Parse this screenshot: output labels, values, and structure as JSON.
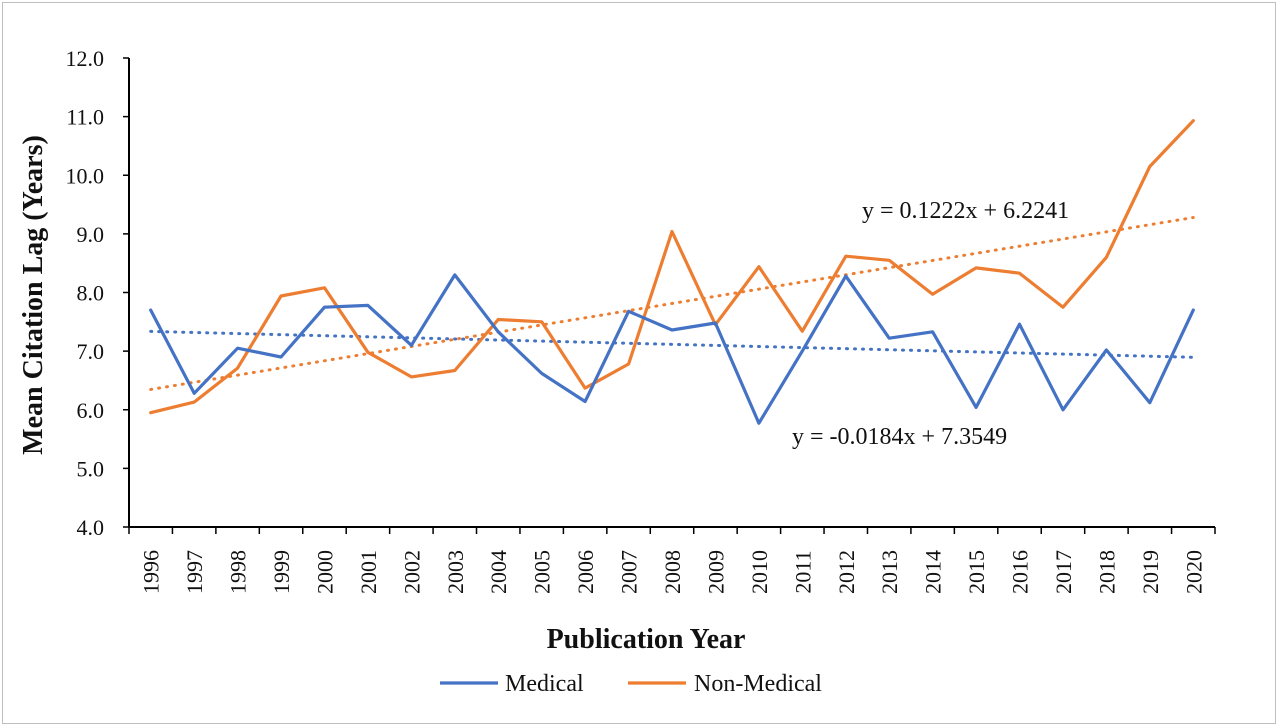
{
  "chart_data": {
    "type": "line",
    "title": "",
    "xlabel": "Publication Year",
    "ylabel": "Mean Citation Lag (Years)",
    "ylim": [
      4.0,
      12.0
    ],
    "ytick_step": 1.0,
    "categories": [
      "1996",
      "1997",
      "1998",
      "1999",
      "2000",
      "2001",
      "2002",
      "2003",
      "2004",
      "2005",
      "2006",
      "2007",
      "2008",
      "2009",
      "2010",
      "2011",
      "2012",
      "2013",
      "2014",
      "2015",
      "2016",
      "2017",
      "2018",
      "2019",
      "2020"
    ],
    "series": [
      {
        "name": "Medical",
        "color": "#4472C4",
        "values": [
          7.7,
          6.28,
          7.05,
          6.9,
          7.75,
          7.78,
          7.1,
          8.3,
          7.33,
          6.62,
          6.14,
          7.68,
          7.36,
          7.48,
          5.77,
          7.0,
          8.28,
          7.22,
          7.33,
          6.04,
          7.46,
          6.0,
          7.02,
          6.12,
          7.7
        ]
      },
      {
        "name": "Non-Medical",
        "color": "#ED7D31",
        "values": [
          5.95,
          6.13,
          6.71,
          7.94,
          8.08,
          6.98,
          6.56,
          6.67,
          7.54,
          7.5,
          6.37,
          6.78,
          9.04,
          7.45,
          8.44,
          7.34,
          8.62,
          8.55,
          7.97,
          8.42,
          8.33,
          7.75,
          8.6,
          10.15,
          10.93
        ]
      }
    ],
    "trendlines": [
      {
        "series": "Medical",
        "slope": -0.0184,
        "intercept": 7.3549,
        "color": "#4472C4",
        "label": "y = -0.0184x + 7.3549"
      },
      {
        "series": "Non-Medical",
        "slope": 0.1222,
        "intercept": 6.2241,
        "color": "#ED7D31",
        "label": "y = 0.1222x + 6.2241"
      }
    ],
    "legend": {
      "placement": "bottom",
      "entries": [
        "Medical",
        "Non-Medical"
      ]
    },
    "grid": false
  }
}
